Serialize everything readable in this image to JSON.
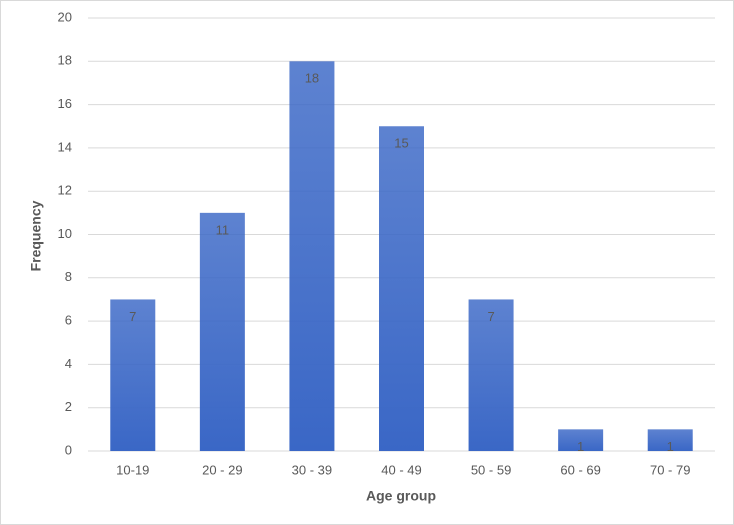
{
  "chart_data": {
    "type": "bar",
    "x_label": "Age group",
    "y_label": "Frequency",
    "categories": [
      "10-19",
      "20 - 29",
      "30 - 39",
      "40 - 49",
      "50 - 59",
      "60 - 69",
      "70 - 79"
    ],
    "values": [
      7,
      11,
      18,
      15,
      7,
      1,
      1
    ],
    "color": "#3a67c6",
    "ylim": [
      0,
      20
    ],
    "yticks": [
      0,
      2,
      4,
      6,
      8,
      10,
      12,
      14,
      16,
      18,
      20
    ],
    "grid": true
  }
}
